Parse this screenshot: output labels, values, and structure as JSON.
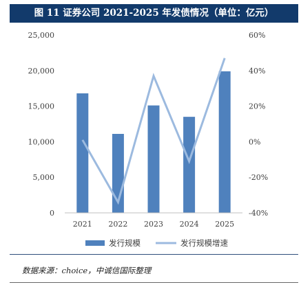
{
  "title": "图 11  证券公司 2021-2025 年发债情况（单位：亿元）",
  "source": "数据来源：choice，中诚信国际整理",
  "colors": {
    "bar": "#4f81bd",
    "line": "#9cbadf",
    "title_bg": "#123a6b"
  },
  "chart_data": {
    "type": "bar",
    "categories": [
      "2021",
      "2022",
      "2023",
      "2024",
      "2025"
    ],
    "series": [
      {
        "name": "发行规模",
        "type": "bar",
        "axis": "left",
        "values": [
          16800,
          11100,
          15100,
          13500,
          19900
        ]
      },
      {
        "name": "发行规模增速",
        "type": "line",
        "axis": "right",
        "values": [
          0.01,
          -0.34,
          0.37,
          -0.11,
          0.47
        ]
      }
    ],
    "y_left": {
      "ylim": [
        0,
        25000
      ],
      "ticks": [
        0,
        5000,
        10000,
        15000,
        20000,
        25000
      ],
      "tick_labels": [
        "0",
        "5,000",
        "10,000",
        "15,000",
        "20,000",
        "25,000"
      ]
    },
    "y_right": {
      "ylim": [
        -0.4,
        0.6
      ],
      "ticks": [
        -0.4,
        -0.2,
        0,
        0.2,
        0.4,
        0.6
      ],
      "tick_labels": [
        "-40%",
        "-20%",
        "0%",
        "20%",
        "40%",
        "60%"
      ]
    },
    "grid": false,
    "legend": "bottom-center"
  }
}
